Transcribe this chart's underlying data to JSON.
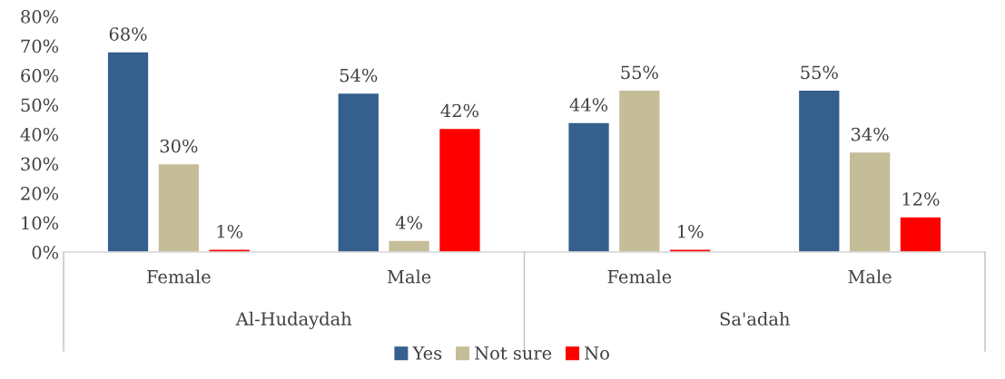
{
  "chart_data": {
    "type": "bar",
    "categories": [
      "Female",
      "Male",
      "Female",
      "Male"
    ],
    "series": [
      {
        "name": "Yes",
        "color": "#355f8d",
        "values": [
          68,
          54,
          44,
          55
        ],
        "value_labels": [
          "68%",
          "54%",
          "44%",
          "55%"
        ]
      },
      {
        "name": "Not sure",
        "color": "#c4bd97",
        "values": [
          30,
          4,
          55,
          34
        ],
        "value_labels": [
          "30%",
          "4%",
          "55%",
          "34%"
        ]
      },
      {
        "name": "No",
        "color": "#ff0000",
        "values": [
          1,
          42,
          1,
          12
        ],
        "value_labels": [
          "1%",
          "42%",
          "1%",
          "12%"
        ]
      }
    ],
    "annotations": [
      "Al-Hudaydah",
      "Sa'adah"
    ],
    "ylim": [
      0,
      80
    ],
    "yticks": [
      {
        "value": 0,
        "label": "0%"
      },
      {
        "value": 10,
        "label": "10%"
      },
      {
        "value": 20,
        "label": "20%"
      },
      {
        "value": 30,
        "label": "30%"
      },
      {
        "value": 40,
        "label": "40%"
      },
      {
        "value": 50,
        "label": "50%"
      },
      {
        "value": 60,
        "label": "60%"
      },
      {
        "value": 70,
        "label": "70%"
      },
      {
        "value": 80,
        "label": "80%"
      }
    ],
    "grid": false,
    "legend": "bottom"
  }
}
